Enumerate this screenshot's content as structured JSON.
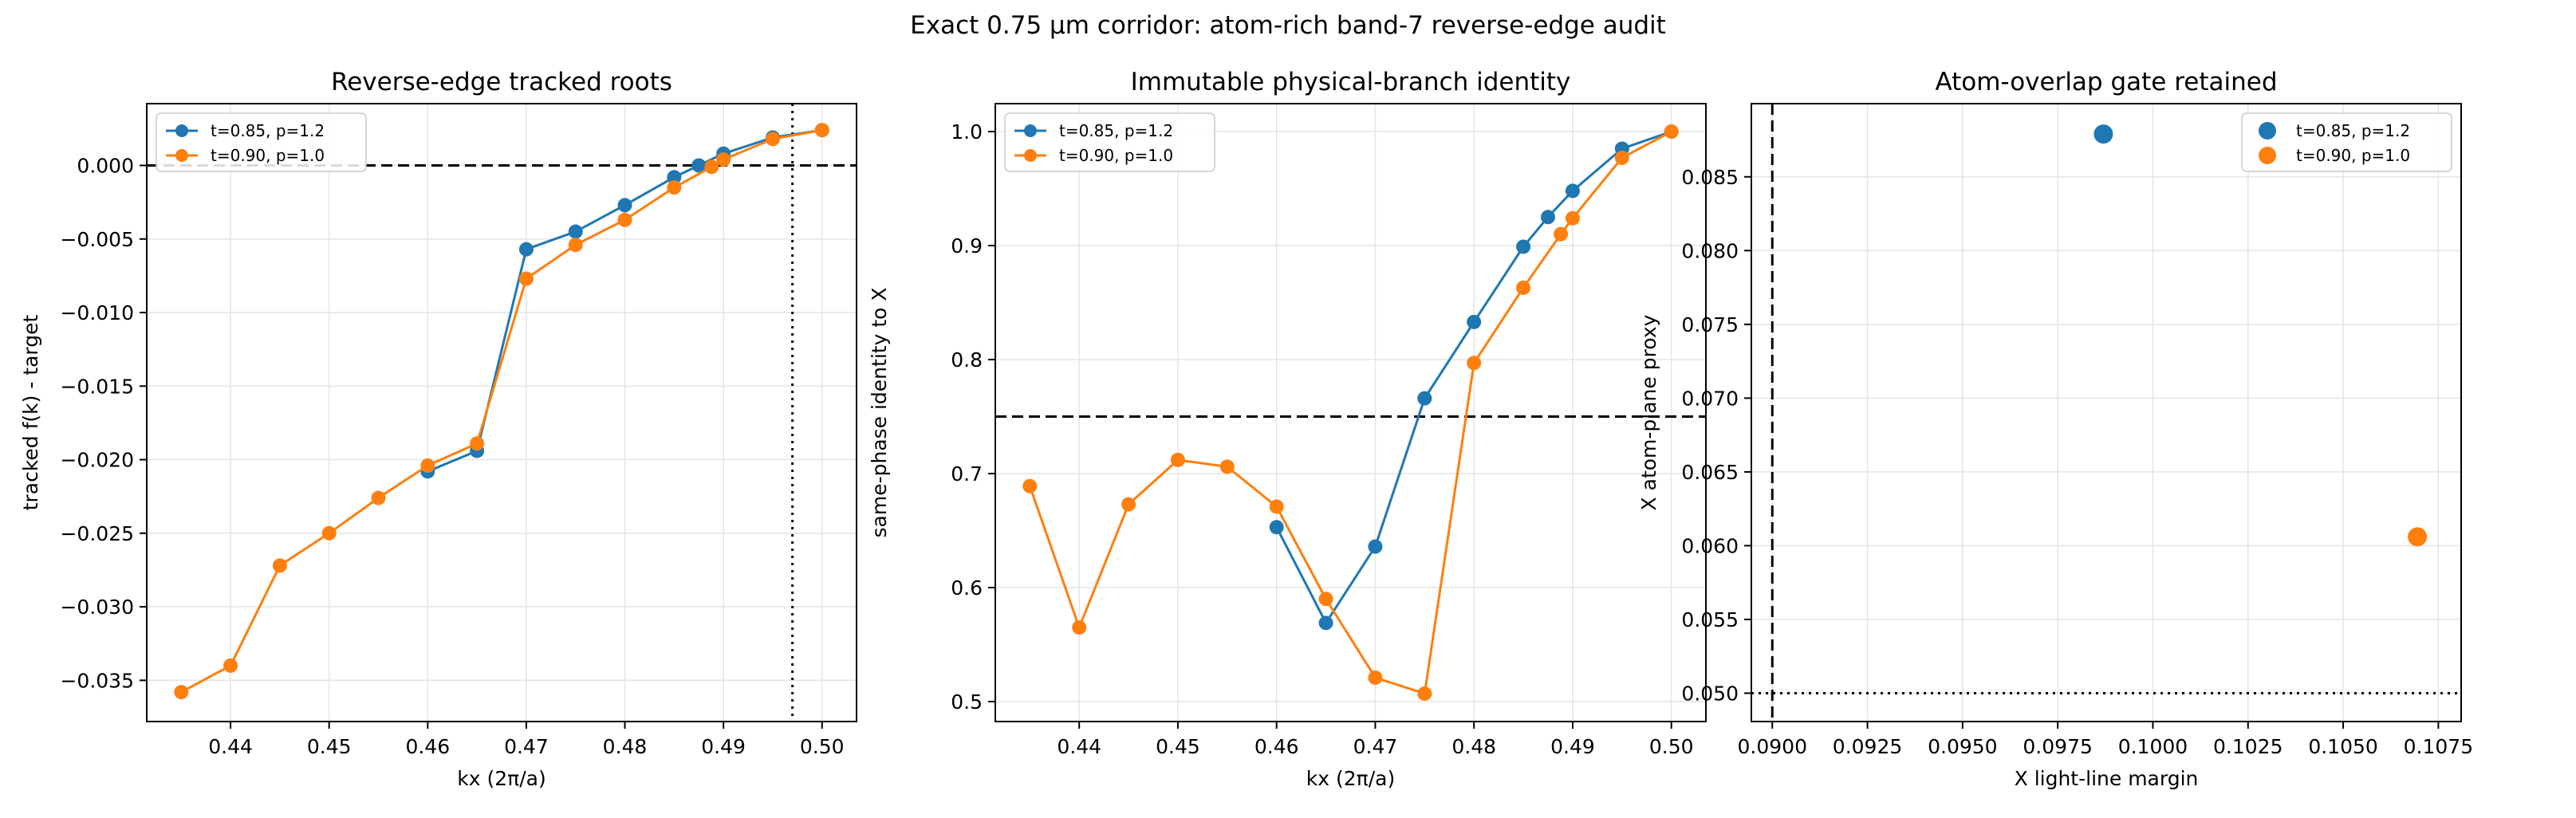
{
  "figure": {
    "suptitle": "Exact 0.75 µm corridor: atom-rich band-7 reverse-edge audit"
  },
  "colors": {
    "series_a": "#1f77b4",
    "series_b": "#ff7f0e",
    "grid": "#e6e6e6",
    "ref_line": "#000000"
  },
  "chart_data": [
    {
      "type": "line",
      "title": "Reverse-edge tracked roots",
      "xlabel": "kx (2π/a)",
      "ylabel": "tracked f(k) - target",
      "xlim": [
        0.4315,
        0.5035
      ],
      "ylim": [
        -0.0378,
        0.0042
      ],
      "xticks": [
        0.44,
        0.45,
        0.46,
        0.47,
        0.48,
        0.49,
        0.5
      ],
      "xtick_labels": [
        "0.44",
        "0.45",
        "0.46",
        "0.47",
        "0.48",
        "0.49",
        "0.50"
      ],
      "yticks": [
        -0.035,
        -0.03,
        -0.025,
        -0.02,
        -0.015,
        -0.01,
        -0.005,
        0.0
      ],
      "ytick_labels": [
        "−0.035",
        "−0.030",
        "−0.025",
        "−0.020",
        "−0.015",
        "−0.010",
        "−0.005",
        "0.000"
      ],
      "grid": true,
      "legend_position": "upper left",
      "reference_lines": [
        {
          "orientation": "horizontal",
          "value": 0.0,
          "style": "dashed"
        },
        {
          "orientation": "vertical",
          "value": 0.497,
          "style": "dotted"
        }
      ],
      "series": [
        {
          "name": "t=0.85, p=1.2",
          "x": [
            0.46,
            0.465,
            0.47,
            0.475,
            0.48,
            0.485,
            0.4875,
            0.49,
            0.495,
            0.5
          ],
          "y": [
            -0.0208,
            -0.0194,
            -0.0057,
            -0.0045,
            -0.0027,
            -0.0008,
            0.0,
            0.0008,
            0.0019,
            0.0024
          ]
        },
        {
          "name": "t=0.90, p=1.0",
          "x": [
            0.435,
            0.44,
            0.445,
            0.45,
            0.455,
            0.46,
            0.465,
            0.47,
            0.475,
            0.48,
            0.485,
            0.4888,
            0.49,
            0.495,
            0.5
          ],
          "y": [
            -0.0358,
            -0.034,
            -0.0272,
            -0.025,
            -0.0226,
            -0.0204,
            -0.0189,
            -0.0077,
            -0.0054,
            -0.0037,
            -0.0015,
            -0.0001,
            0.0004,
            0.0018,
            0.0024
          ]
        }
      ]
    },
    {
      "type": "line",
      "title": "Immutable physical-branch identity",
      "xlabel": "kx (2π/a)",
      "ylabel": "same-phase identity to X",
      "xlim": [
        0.4315,
        0.5035
      ],
      "ylim": [
        0.4825,
        1.0245
      ],
      "xticks": [
        0.44,
        0.45,
        0.46,
        0.47,
        0.48,
        0.49,
        0.5
      ],
      "xtick_labels": [
        "0.44",
        "0.45",
        "0.46",
        "0.47",
        "0.48",
        "0.49",
        "0.50"
      ],
      "yticks": [
        0.5,
        0.6,
        0.7,
        0.8,
        0.9,
        1.0
      ],
      "ytick_labels": [
        "0.5",
        "0.6",
        "0.7",
        "0.8",
        "0.9",
        "1.0"
      ],
      "grid": true,
      "legend_position": "upper left",
      "reference_lines": [
        {
          "orientation": "horizontal",
          "value": 0.75,
          "style": "dashed"
        }
      ],
      "series": [
        {
          "name": "t=0.85, p=1.2",
          "x": [
            0.46,
            0.465,
            0.47,
            0.475,
            0.48,
            0.485,
            0.4875,
            0.49,
            0.495,
            0.5
          ],
          "y": [
            0.653,
            0.569,
            0.636,
            0.766,
            0.833,
            0.899,
            0.925,
            0.948,
            0.985,
            1.0
          ]
        },
        {
          "name": "t=0.90, p=1.0",
          "x": [
            0.435,
            0.44,
            0.445,
            0.45,
            0.455,
            0.46,
            0.465,
            0.47,
            0.475,
            0.48,
            0.485,
            0.4888,
            0.49,
            0.495,
            0.5
          ],
          "y": [
            0.689,
            0.565,
            0.673,
            0.712,
            0.706,
            0.671,
            0.59,
            0.521,
            0.507,
            0.797,
            0.863,
            0.91,
            0.924,
            0.977,
            1.0
          ]
        }
      ]
    },
    {
      "type": "scatter",
      "title": "Atom-overlap gate retained",
      "xlabel": "X light-line margin",
      "ylabel": "X atom-plane proxy",
      "xlim": [
        0.08945,
        0.1081
      ],
      "ylim": [
        0.04808,
        0.08996
      ],
      "xticks": [
        0.09,
        0.0925,
        0.095,
        0.0975,
        0.1,
        0.1025,
        0.105,
        0.1075
      ],
      "xtick_labels": [
        "0.0900",
        "0.0925",
        "0.0950",
        "0.0975",
        "0.1000",
        "0.1025",
        "0.1050",
        "0.1075"
      ],
      "yticks": [
        0.05,
        0.055,
        0.06,
        0.065,
        0.07,
        0.075,
        0.08,
        0.085
      ],
      "ytick_labels": [
        "0.050",
        "0.055",
        "0.060",
        "0.065",
        "0.070",
        "0.075",
        "0.080",
        "0.085"
      ],
      "grid": true,
      "legend_position": "upper right",
      "reference_lines": [
        {
          "orientation": "vertical",
          "value": 0.09,
          "style": "dashed"
        },
        {
          "orientation": "horizontal",
          "value": 0.05,
          "style": "dotted"
        }
      ],
      "series": [
        {
          "name": "t=0.85, p=1.2",
          "x": [
            0.0987
          ],
          "y": [
            0.0879
          ]
        },
        {
          "name": "t=0.90, p=1.0",
          "x": [
            0.10695
          ],
          "y": [
            0.0606
          ]
        }
      ]
    }
  ]
}
